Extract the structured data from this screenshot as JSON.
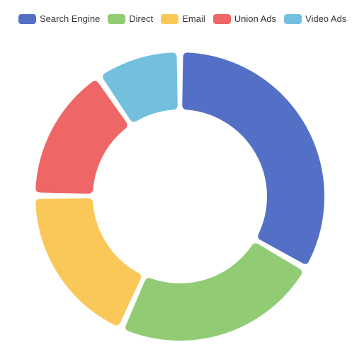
{
  "chart_data": {
    "type": "pie",
    "variant": "donut",
    "title": "",
    "legend": {
      "position": "top",
      "items": [
        {
          "name": "Search Engine",
          "color": "#5470c6"
        },
        {
          "name": "Direct",
          "color": "#91cc75"
        },
        {
          "name": "Email",
          "color": "#fac858"
        },
        {
          "name": "Union Ads",
          "color": "#ee6666"
        },
        {
          "name": "Video Ads",
          "color": "#73c0de"
        }
      ]
    },
    "slices": [
      {
        "name": "Search Engine",
        "value": 1048,
        "color": "#5470c6"
      },
      {
        "name": "Direct",
        "value": 735,
        "color": "#91cc75"
      },
      {
        "name": "Email",
        "value": 580,
        "color": "#fac858"
      },
      {
        "name": "Union Ads",
        "value": 484,
        "color": "#ee6666"
      },
      {
        "name": "Video Ads",
        "value": 300,
        "color": "#73c0de"
      }
    ]
  }
}
